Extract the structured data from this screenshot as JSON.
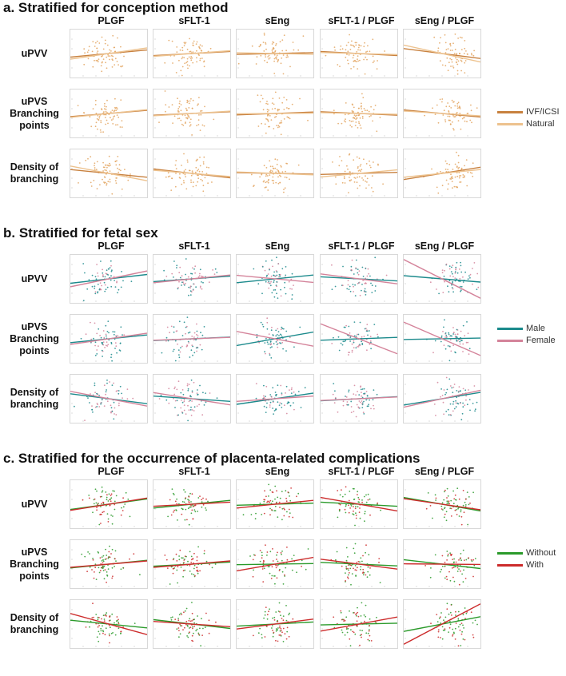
{
  "figure": {
    "columns": [
      "PLGF",
      "sFLT-1",
      "sEng",
      "sFLT-1 / PLGF",
      "sEng / PLGF"
    ],
    "rows": [
      "uPVV",
      "uPVS\nBranching\npoints",
      "Density of\nbranching"
    ]
  },
  "chart_data": [
    {
      "type": "scatter",
      "title": "a.  Stratified for conception method",
      "columns": [
        "PLGF",
        "sFLT-1",
        "sEng",
        "sFLT-1 / PLGF",
        "sEng / PLGF"
      ],
      "rows": [
        "uPVV",
        "uPVS Branching points",
        "Density of branching"
      ],
      "series": [
        {
          "name": "IVF/ICSI",
          "color": "#c8813f",
          "slopes": [
            [
              0.2,
              0.12,
              0.05,
              -0.12,
              -0.28
            ],
            [
              0.18,
              0.1,
              0.08,
              -0.1,
              -0.2
            ],
            [
              -0.22,
              -0.25,
              -0.04,
              0.06,
              0.35
            ]
          ]
        },
        {
          "name": "Natural",
          "color": "#edc28e",
          "slopes": [
            [
              0.32,
              0.16,
              -0.04,
              -0.06,
              -0.48
            ],
            [
              0.22,
              0.13,
              0.02,
              -0.05,
              -0.14
            ],
            [
              -0.42,
              -0.18,
              -0.08,
              0.2,
              0.22
            ]
          ]
        }
      ],
      "point_color": "#e3a560"
    },
    {
      "type": "scatter",
      "title": "b.  Stratified for fetal sex",
      "columns": [
        "PLGF",
        "sFLT-1",
        "sEng",
        "sFLT-1 / PLGF",
        "sEng / PLGF"
      ],
      "rows": [
        "uPVV",
        "uPVS Branching points",
        "Density of branching"
      ],
      "series": [
        {
          "name": "Male",
          "color": "#1b8a8c",
          "slopes": [
            [
              0.25,
              0.16,
              0.22,
              -0.12,
              -0.18
            ],
            [
              0.22,
              0.1,
              0.38,
              0.08,
              0.04
            ],
            [
              -0.28,
              -0.15,
              0.32,
              0.12,
              0.36
            ]
          ]
        },
        {
          "name": "Female",
          "color": "#d4839a",
          "slopes": [
            [
              0.45,
              0.22,
              -0.2,
              -0.28,
              -1.1
            ],
            [
              0.32,
              0.08,
              -0.42,
              -0.85,
              -0.95
            ],
            [
              -0.42,
              -0.35,
              0.15,
              0.1,
              0.48
            ]
          ]
        }
      ],
      "point_color_a": "#1b8a8c",
      "point_color_b": "#d4839a"
    },
    {
      "type": "scatter",
      "title": "c.  Stratified for the occurrence of placenta-related complications",
      "columns": [
        "PLGF",
        "sFLT-1",
        "sEng",
        "sFLT-1 / PLGF",
        "sEng / PLGF"
      ],
      "rows": [
        "uPVV",
        "uPVS Branching points",
        "Density of branching"
      ],
      "series": [
        {
          "name": "Without",
          "color": "#2a9a2a",
          "slopes": [
            [
              0.3,
              0.22,
              0.06,
              -0.12,
              -0.38
            ],
            [
              0.22,
              0.12,
              0.03,
              -0.1,
              -0.25
            ],
            [
              -0.22,
              -0.25,
              0.12,
              0.05,
              0.42
            ]
          ]
        },
        {
          "name": "With",
          "color": "#cc2b2b",
          "slopes": [
            [
              0.35,
              0.12,
              0.22,
              -0.38,
              -0.32
            ],
            [
              0.18,
              0.18,
              0.38,
              -0.28,
              -0.02
            ],
            [
              -0.6,
              -0.15,
              0.28,
              0.4,
              1.15
            ]
          ]
        }
      ],
      "point_color_a": "#2a9a2a",
      "point_color_b": "#cc2b2b"
    }
  ]
}
